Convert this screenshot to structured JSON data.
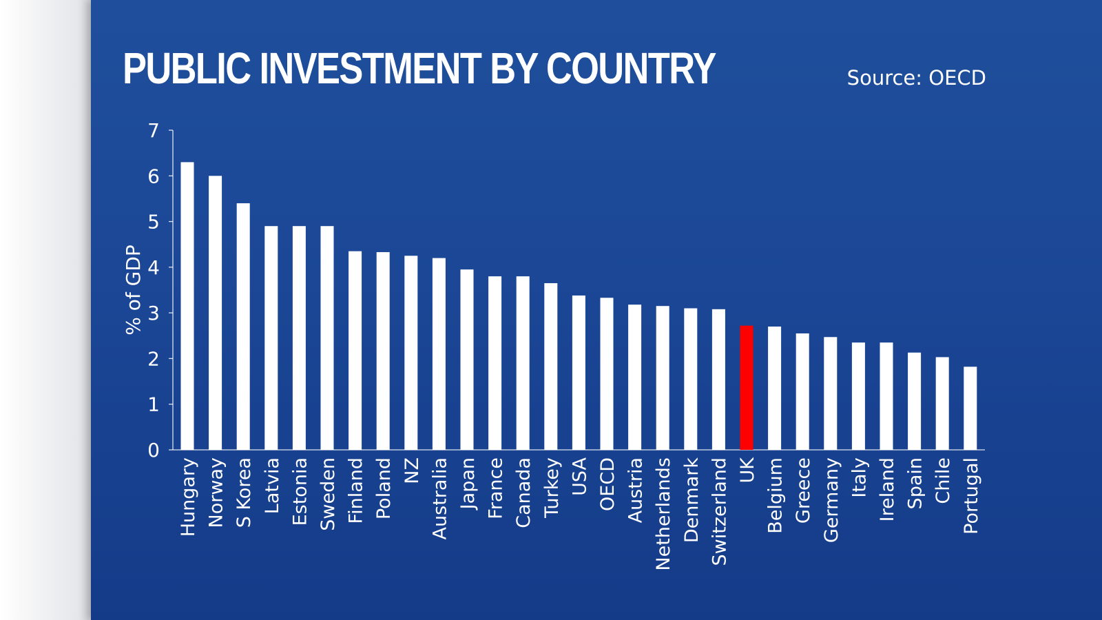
{
  "title": "PUBLIC INVESTMENT BY COUNTRY",
  "source": "Source: OECD",
  "colors": {
    "background": "#1b4796",
    "bar": "#ffffff",
    "highlight": "#ff0000",
    "text": "#ffffff"
  },
  "chart_data": {
    "type": "bar",
    "title": "PUBLIC INVESTMENT BY COUNTRY",
    "xlabel": "",
    "ylabel": "% of GDP",
    "ylim": [
      0,
      7
    ],
    "yticks": [
      0,
      1,
      2,
      3,
      4,
      5,
      6,
      7
    ],
    "grid": false,
    "highlight": "UK",
    "categories": [
      "Hungary",
      "Norway",
      "S Korea",
      "Latvia",
      "Estonia",
      "Sweden",
      "Finland",
      "Poland",
      "NZ",
      "Australia",
      "Japan",
      "France",
      "Canada",
      "Turkey",
      "USA",
      "OECD",
      "Austria",
      "Netherlands",
      "Denmark",
      "Switzerland",
      "UK",
      "Belgium",
      "Greece",
      "Germany",
      "Italy",
      "Ireland",
      "Spain",
      "Chile",
      "Portugal"
    ],
    "values": [
      6.3,
      6.0,
      5.4,
      4.9,
      4.9,
      4.9,
      4.35,
      4.33,
      4.25,
      4.2,
      3.95,
      3.8,
      3.8,
      3.65,
      3.38,
      3.33,
      3.18,
      3.15,
      3.1,
      3.08,
      2.72,
      2.7,
      2.55,
      2.47,
      2.35,
      2.35,
      2.13,
      2.03,
      1.82
    ]
  }
}
